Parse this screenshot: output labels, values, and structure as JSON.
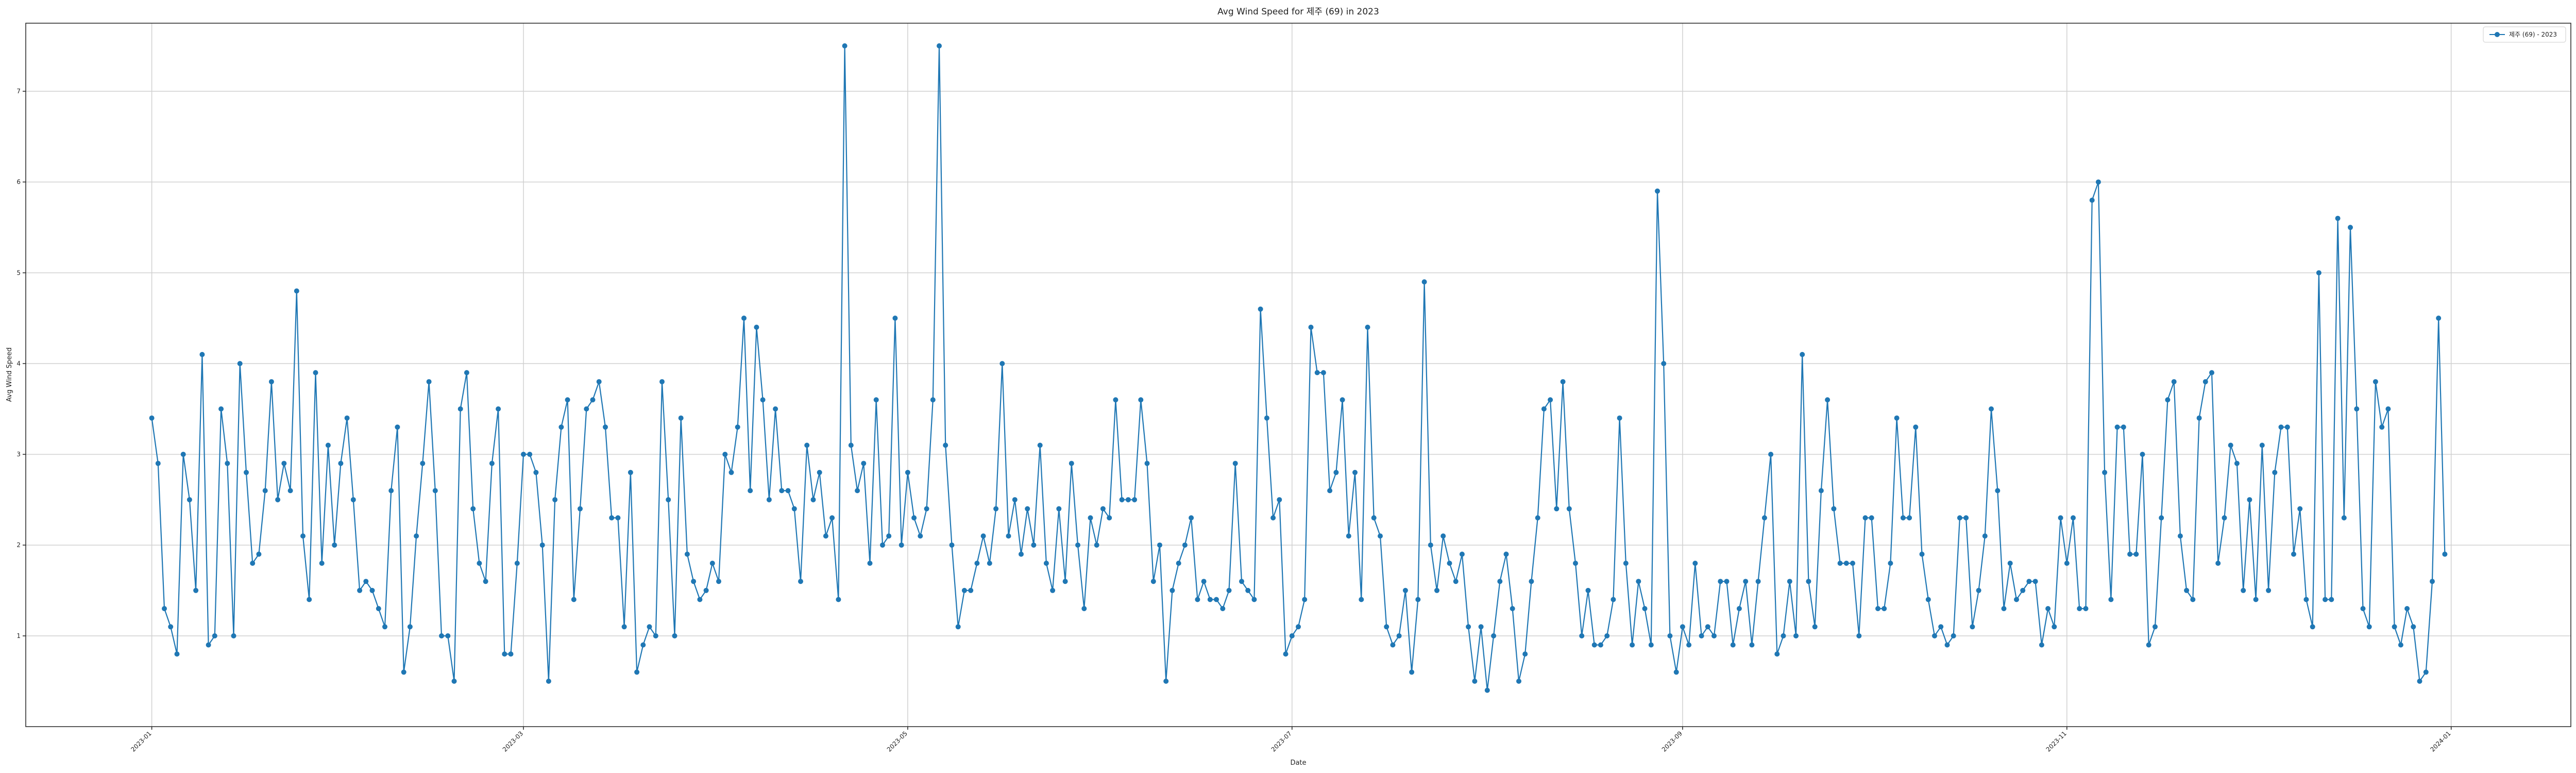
{
  "colors": {
    "series": "#1f77b4"
  },
  "chart_data": {
    "type": "line",
    "title": "Avg Wind Speed for 제주 (69) in 2023",
    "xlabel": "Date",
    "ylabel": "Avg Wind Speed",
    "grid": true,
    "legend_position": "top-right",
    "marker": "circle",
    "x_start": "2023-01-01",
    "x_end": "2023-12-31",
    "xlim": [
      "2022-12-12",
      "2024-01-20"
    ],
    "ylim": [
      0.0,
      7.75
    ],
    "x_ticks": [
      "2023-01",
      "2023-03",
      "2023-05",
      "2023-07",
      "2023-09",
      "2023-11",
      "2024-01"
    ],
    "y_ticks": [
      1,
      2,
      3,
      4,
      5,
      6,
      7
    ],
    "series": [
      {
        "name": "제주 (69) - 2023",
        "values": [
          3.4,
          2.9,
          1.3,
          1.1,
          0.8,
          3.0,
          2.5,
          1.5,
          4.1,
          0.9,
          1.0,
          3.5,
          2.9,
          1.0,
          4.0,
          2.8,
          1.8,
          1.9,
          2.6,
          3.8,
          2.5,
          2.9,
          2.6,
          4.8,
          2.1,
          1.4,
          3.9,
          1.8,
          3.1,
          2.0,
          2.9,
          3.4,
          2.5,
          1.5,
          1.6,
          1.5,
          1.3,
          1.1,
          2.6,
          3.3,
          0.6,
          1.1,
          2.1,
          2.9,
          3.8,
          2.6,
          1.0,
          1.0,
          0.5,
          3.5,
          3.9,
          2.4,
          1.8,
          1.6,
          2.9,
          3.5,
          0.8,
          0.8,
          1.8,
          3.0,
          3.0,
          2.8,
          2.0,
          0.5,
          2.5,
          3.3,
          3.6,
          1.4,
          2.4,
          3.5,
          3.6,
          3.8,
          3.3,
          2.3,
          2.3,
          1.1,
          2.8,
          0.6,
          0.9,
          1.1,
          1.0,
          3.8,
          2.5,
          1.0,
          3.4,
          1.9,
          1.6,
          1.4,
          1.5,
          1.8,
          1.6,
          3.0,
          2.8,
          3.3,
          4.5,
          2.6,
          4.4,
          3.6,
          2.5,
          3.5,
          2.6,
          2.6,
          2.4,
          1.6,
          3.1,
          2.5,
          2.8,
          2.1,
          2.3,
          1.4,
          7.5,
          3.1,
          2.6,
          2.9,
          1.8,
          3.6,
          2.0,
          2.1,
          4.5,
          2.0,
          2.8,
          2.3,
          2.1,
          2.4,
          3.6,
          7.5,
          3.1,
          2.0,
          1.1,
          1.5,
          1.5,
          1.8,
          2.1,
          1.8,
          2.4,
          4.0,
          2.1,
          2.5,
          1.9,
          2.4,
          2.0,
          3.1,
          1.8,
          1.5,
          2.4,
          1.6,
          2.9,
          2.0,
          1.3,
          2.3,
          2.0,
          2.4,
          2.3,
          3.6,
          2.5,
          2.5,
          2.5,
          3.6,
          2.9,
          1.6,
          2.0,
          0.5,
          1.5,
          1.8,
          2.0,
          2.3,
          1.4,
          1.6,
          1.4,
          1.4,
          1.3,
          1.5,
          2.9,
          1.6,
          1.5,
          1.4,
          4.6,
          3.4,
          2.3,
          2.5,
          0.8,
          1.0,
          1.1,
          1.4,
          4.4,
          3.9,
          3.9,
          2.6,
          2.8,
          3.6,
          2.1,
          2.8,
          1.4,
          4.4,
          2.3,
          2.1,
          1.1,
          0.9,
          1.0,
          1.5,
          0.6,
          1.4,
          4.9,
          2.0,
          1.5,
          2.1,
          1.8,
          1.6,
          1.9,
          1.1,
          0.5,
          1.1,
          0.4,
          1.0,
          1.6,
          1.9,
          1.3,
          0.5,
          0.8,
          1.6,
          2.3,
          3.5,
          3.6,
          2.4,
          3.8,
          2.4,
          1.8,
          1.0,
          1.5,
          0.9,
          0.9,
          1.0,
          1.4,
          3.4,
          1.8,
          0.9,
          1.6,
          1.3,
          0.9,
          5.9,
          4.0,
          1.0,
          0.6,
          1.1,
          0.9,
          1.8,
          1.0,
          1.1,
          1.0,
          1.6,
          1.6,
          0.9,
          1.3,
          1.6,
          0.9,
          1.6,
          2.3,
          3.0,
          0.8,
          1.0,
          1.6,
          1.0,
          4.1,
          1.6,
          1.1,
          2.6,
          3.6,
          2.4,
          1.8,
          1.8,
          1.8,
          1.0,
          2.3,
          2.3,
          1.3,
          1.3,
          1.8,
          3.4,
          2.3,
          2.3,
          3.3,
          1.9,
          1.4,
          1.0,
          1.1,
          0.9,
          1.0,
          2.3,
          2.3,
          1.1,
          1.5,
          2.1,
          3.5,
          2.6,
          1.3,
          1.8,
          1.4,
          1.5,
          1.6,
          1.6,
          0.9,
          1.3,
          1.1,
          2.3,
          1.8,
          2.3,
          1.3,
          1.3,
          5.8,
          6.0,
          2.8,
          1.4,
          3.3,
          3.3,
          1.9,
          1.9,
          3.0,
          0.9,
          1.1,
          2.3,
          3.6,
          3.8,
          2.1,
          1.5,
          1.4,
          3.4,
          3.8,
          3.9,
          1.8,
          2.3,
          3.1,
          2.9,
          1.5,
          2.5,
          1.4,
          3.1,
          1.5,
          2.8,
          3.3,
          3.3,
          1.9,
          2.4,
          1.4,
          1.1,
          5.0,
          1.4,
          1.4,
          5.6,
          2.3,
          5.5,
          3.5,
          1.3,
          1.1,
          3.8,
          3.3,
          3.5,
          1.1,
          0.9,
          1.3,
          1.1,
          0.5,
          0.6,
          1.6,
          4.5,
          1.9
        ]
      }
    ]
  }
}
